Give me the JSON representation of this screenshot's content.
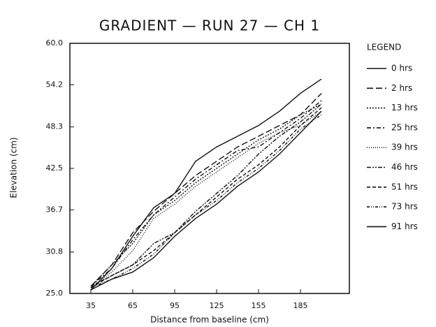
{
  "chart_data": {
    "type": "line",
    "title": "GRADIENT — RUN 27 — CH 1",
    "xlabel": "Distance from baseline (cm)",
    "ylabel": "Elevation (cm)",
    "legend_title": "LEGEND",
    "legend": "right",
    "grid": false,
    "x": [
      35,
      50,
      65,
      80,
      95,
      110,
      125,
      140,
      155,
      170,
      185,
      200
    ],
    "xlim": [
      20,
      220
    ],
    "xticks": [
      35,
      65,
      95,
      125,
      155,
      185
    ],
    "ylim": [
      25,
      60
    ],
    "yticks": [
      {
        "value": 25,
        "label": "25.0"
      },
      30.8,
      36.7,
      42.5,
      48.3,
      54.2,
      {
        "value": 60,
        "label": "60.0"
      }
    ],
    "series": [
      {
        "name": "0 hrs",
        "color": "#111",
        "dash": "none",
        "values": [
          25.5,
          28.5,
          33,
          37,
          39,
          43.5,
          45.5,
          47,
          48.5,
          50.5,
          53,
          55
        ]
      },
      {
        "name": "2 hrs",
        "color": "#111",
        "dash": "9 4",
        "values": [
          26,
          29,
          33.5,
          36.5,
          39,
          41.5,
          43.5,
          45.5,
          47,
          48.5,
          50,
          53
        ]
      },
      {
        "name": "13 hrs",
        "color": "#111",
        "dash": "2 2",
        "values": [
          26,
          29,
          32,
          36,
          38,
          40.5,
          42.5,
          44.5,
          46.5,
          48,
          50,
          51.5
        ]
      },
      {
        "name": "25 hrs",
        "color": "#111",
        "dash": "6 3 2 3",
        "values": [
          26,
          28.5,
          32.5,
          36,
          38.5,
          41,
          43,
          45,
          45.5,
          47.5,
          49.5,
          52
        ]
      },
      {
        "name": "39 hrs",
        "color": "#111",
        "dash": "1 2",
        "values": [
          25.8,
          28,
          31,
          35.5,
          37.5,
          40,
          42,
          44,
          46,
          47.5,
          48.5,
          50.5
        ]
      },
      {
        "name": "46 hrs",
        "color": "#111",
        "dash": "6 2 2 2 2 2",
        "values": [
          26,
          27.5,
          29,
          32,
          33.5,
          36.5,
          39,
          41.5,
          44.5,
          47,
          49,
          51.5
        ]
      },
      {
        "name": "51 hrs",
        "color": "#111",
        "dash": "5 3",
        "values": [
          25.8,
          27.5,
          29,
          31,
          33.5,
          36,
          38.5,
          41,
          43,
          45.5,
          48.5,
          51
        ]
      },
      {
        "name": "73 hrs",
        "color": "#111",
        "dash": "4 2 1 2 1 2",
        "values": [
          25.8,
          27,
          28.5,
          30.5,
          33.5,
          36,
          38,
          40.5,
          42.5,
          45,
          48,
          50
        ]
      },
      {
        "name": "91 hrs",
        "color": "#111",
        "dash": "none",
        "values": [
          25.5,
          27,
          28,
          30,
          33,
          35.5,
          37.5,
          40,
          42,
          44.5,
          47.5,
          50.5
        ]
      }
    ]
  }
}
